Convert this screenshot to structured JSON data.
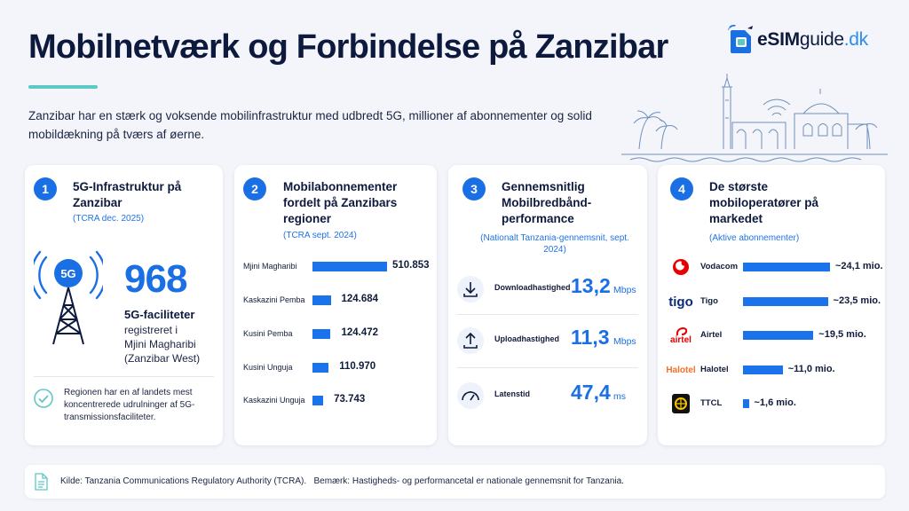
{
  "header": {
    "title": "Mobilnetværk og Forbindelse på Zanzibar",
    "intro": "Zanzibar har en stærk og voksende mobilinfrastruktur med udbredt 5G, millioner af abonnementer og solid mobildækning på tværs af øerne."
  },
  "logo": {
    "part1": "eSIM",
    "part2": "guide",
    "part3": ".dk"
  },
  "colors": {
    "accent": "#1a6fe5",
    "teal": "#5ec8c5",
    "dark": "#0d1a3d"
  },
  "card1": {
    "number": "1",
    "title": "5G-Infrastruktur på Zanzibar",
    "subtitle": "(TCRA dec. 2025)",
    "tower_label": "5G",
    "value": "968",
    "value_label": "5G-faciliteter",
    "desc1": "registreret i",
    "desc2": "Mjini Magharibi",
    "desc3": "(Zanzibar West)",
    "note": "Regionen har en af landets mest koncentrerede udrulninger af 5G-transmissionsfaciliteter."
  },
  "card2": {
    "number": "2",
    "title": "Mobilabonnementer fordelt på Zanzibars regioner",
    "subtitle": "(TCRA sept. 2024)"
  },
  "card3": {
    "number": "3",
    "title": "Gennemsnitlig Mobilbredbånd-performance",
    "subtitle": "(Nationalt Tanzania-gennemsnit, sept. 2024)",
    "rows": [
      {
        "label": "Downloadhastighed",
        "value": "13,2",
        "unit": "Mbps",
        "icon": "download-icon"
      },
      {
        "label": "Uploadhastighed",
        "value": "11,3",
        "unit": "Mbps",
        "icon": "upload-icon"
      },
      {
        "label": "Latenstid",
        "value": "47,4",
        "unit": "ms",
        "icon": "gauge-icon"
      }
    ]
  },
  "card4": {
    "number": "4",
    "title": "De største mobiloperatører på markedet",
    "subtitle": "(Aktive abonnementer)",
    "logo_texts": {
      "tigo": "tigo",
      "airtel": "airtel",
      "halotel": "Halotel"
    }
  },
  "chart_data": [
    {
      "type": "bar",
      "categories": [
        "Mjini Magharibi",
        "Kaskazini Pemba",
        "Kusini Pemba",
        "Kusini Unguja",
        "Kaskazini Unguja"
      ],
      "values": [
        510853,
        124684,
        124472,
        110970,
        73743
      ],
      "value_labels": [
        "510.853",
        "124.684",
        "124.472",
        "110.970",
        "73.743"
      ]
    },
    {
      "type": "bar",
      "categories": [
        "Vodacom",
        "Tigo",
        "Airtel",
        "Halotel",
        "TTCL"
      ],
      "values": [
        24.1,
        23.5,
        19.5,
        11.0,
        1.6
      ],
      "value_labels": [
        "~24,1 mio.",
        "~23,5 mio.",
        "~19,5 mio.",
        "~11,0 mio.",
        "~1,6 mio."
      ]
    }
  ],
  "footer": {
    "source": "Kilde: Tanzania Communications Regulatory Authority (TCRA).",
    "note": "Bemærk: Hastigheds- og performancetal er nationale gennemsnit for Tanzania."
  }
}
